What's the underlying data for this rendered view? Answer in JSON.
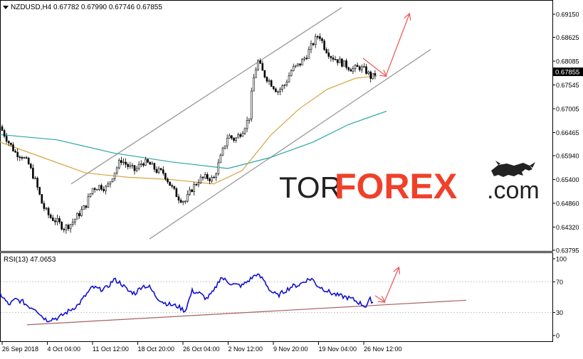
{
  "colors": {
    "background": "#ffffff",
    "axis": "#000000",
    "candle_up": "#ffffff",
    "candle_down": "#000000",
    "ma_fast": "#d9a441",
    "ma_slow": "#2aa5a5",
    "channel": "#9a9a9a",
    "rsi_line": "#1010d0",
    "rsi_trend": "#a86060",
    "arrow": "#f05050",
    "price_tag_bg": "#000000",
    "price_tag_text": "#ffffff",
    "logo_dark": "#222222",
    "logo_red": "#f0402a"
  },
  "logo": {
    "part1": "TOR",
    "part2": "FOREX",
    "part3": ".com",
    "bull_icon": "bull-icon"
  },
  "chart_data": [
    {
      "type": "candlestick",
      "title": "NZDUSD,H4  0.67782  0.67990  0.67746  0.67855",
      "symbol": "NZDUSD",
      "timeframe": "H4",
      "ohlc_readout": {
        "open": 0.67782,
        "high": 0.6799,
        "low": 0.67746,
        "close": 0.67855
      },
      "current_price_label": "0.67855",
      "ylim": [
        0.63795,
        0.6915
      ],
      "y_ticks": [
        "0.69150",
        "0.68625",
        "0.68085",
        "0.67545",
        "0.67005",
        "0.66465",
        "0.65940",
        "0.65400",
        "0.64860",
        "0.64320",
        "0.63795"
      ],
      "x_tick_labels": [
        "26 Sep 2018",
        "4 Oct 04:00",
        "11 Oct 12:00",
        "18 Oct 20:00",
        "26 Oct 04:00",
        "2 Nov 12:00",
        "9 Nov 20:00",
        "19 Nov 04:00",
        "26 Nov 12:00"
      ],
      "close_path": [
        [
          0,
          0.666
        ],
        [
          12,
          0.6625
        ],
        [
          22,
          0.66
        ],
        [
          30,
          0.6595
        ],
        [
          40,
          0.6575
        ],
        [
          50,
          0.6535
        ],
        [
          60,
          0.648
        ],
        [
          70,
          0.6455
        ],
        [
          80,
          0.6445
        ],
        [
          90,
          0.643
        ],
        [
          100,
          0.644
        ],
        [
          110,
          0.646
        ],
        [
          120,
          0.648
        ],
        [
          130,
          0.652
        ],
        [
          140,
          0.6525
        ],
        [
          150,
          0.652
        ],
        [
          160,
          0.6555
        ],
        [
          170,
          0.6585
        ],
        [
          180,
          0.657
        ],
        [
          190,
          0.656
        ],
        [
          200,
          0.658
        ],
        [
          210,
          0.6575
        ],
        [
          220,
          0.656
        ],
        [
          230,
          0.6555
        ],
        [
          240,
          0.6525
        ],
        [
          250,
          0.65
        ],
        [
          260,
          0.649
        ],
        [
          270,
          0.652
        ],
        [
          280,
          0.654
        ],
        [
          290,
          0.6545
        ],
        [
          300,
          0.654
        ],
        [
          310,
          0.659
        ],
        [
          320,
          0.664
        ],
        [
          330,
          0.663
        ],
        [
          340,
          0.665
        ],
        [
          350,
          0.668
        ],
        [
          355,
          0.676
        ],
        [
          362,
          0.681
        ],
        [
          370,
          0.678
        ],
        [
          380,
          0.676
        ],
        [
          390,
          0.674
        ],
        [
          400,
          0.6755
        ],
        [
          410,
          0.679
        ],
        [
          420,
          0.68
        ],
        [
          430,
          0.682
        ],
        [
          440,
          0.685
        ],
        [
          448,
          0.687
        ],
        [
          456,
          0.684
        ],
        [
          465,
          0.682
        ],
        [
          475,
          0.681
        ],
        [
          485,
          0.68
        ],
        [
          495,
          0.679
        ],
        [
          505,
          0.6795
        ],
        [
          515,
          0.6785
        ],
        [
          522,
          0.677
        ],
        [
          530,
          0.6785
        ]
      ],
      "ma_fast_path": [
        [
          0,
          0.6625
        ],
        [
          60,
          0.659
        ],
        [
          120,
          0.6555
        ],
        [
          180,
          0.6545
        ],
        [
          240,
          0.654
        ],
        [
          300,
          0.653
        ],
        [
          340,
          0.656
        ],
        [
          380,
          0.664
        ],
        [
          420,
          0.67
        ],
        [
          460,
          0.6745
        ],
        [
          500,
          0.677
        ],
        [
          530,
          0.6775
        ]
      ],
      "ma_slow_path": [
        [
          0,
          0.6642
        ],
        [
          80,
          0.663
        ],
        [
          160,
          0.66
        ],
        [
          240,
          0.658
        ],
        [
          320,
          0.6565
        ],
        [
          380,
          0.659
        ],
        [
          440,
          0.6625
        ],
        [
          490,
          0.6665
        ],
        [
          543,
          0.6695
        ]
      ],
      "channel_upper": [
        [
          100,
          0.653
        ],
        [
          480,
          0.693
        ]
      ],
      "channel_lower": [
        [
          210,
          0.6405
        ],
        [
          605,
          0.6835
        ]
      ],
      "forecast_arrow": [
        [
          510,
          0.6815
        ],
        [
          542,
          0.6775
        ],
        [
          575,
          0.6915
        ]
      ]
    },
    {
      "type": "line",
      "title": "RSI(13) 47.0653",
      "indicator": "RSI",
      "period": 13,
      "value": 47.0653,
      "ylim": [
        0,
        100
      ],
      "y_ticks": [
        "100",
        "70",
        "30",
        "0"
      ],
      "rsi_path": [
        [
          0,
          55
        ],
        [
          12,
          40
        ],
        [
          22,
          47
        ],
        [
          32,
          44
        ],
        [
          40,
          38
        ],
        [
          50,
          35
        ],
        [
          58,
          26
        ],
        [
          66,
          20
        ],
        [
          74,
          22
        ],
        [
          82,
          23
        ],
        [
          90,
          28
        ],
        [
          100,
          34
        ],
        [
          110,
          40
        ],
        [
          120,
          52
        ],
        [
          130,
          63
        ],
        [
          140,
          60
        ],
        [
          150,
          62
        ],
        [
          160,
          73
        ],
        [
          170,
          68
        ],
        [
          180,
          58
        ],
        [
          190,
          55
        ],
        [
          200,
          65
        ],
        [
          210,
          63
        ],
        [
          220,
          50
        ],
        [
          230,
          43
        ],
        [
          240,
          40
        ],
        [
          250,
          38
        ],
        [
          260,
          32
        ],
        [
          270,
          58
        ],
        [
          280,
          55
        ],
        [
          290,
          48
        ],
        [
          300,
          57
        ],
        [
          310,
          76
        ],
        [
          320,
          70
        ],
        [
          330,
          66
        ],
        [
          340,
          65
        ],
        [
          350,
          72
        ],
        [
          360,
          80
        ],
        [
          370,
          73
        ],
        [
          380,
          58
        ],
        [
          390,
          52
        ],
        [
          400,
          58
        ],
        [
          410,
          64
        ],
        [
          420,
          66
        ],
        [
          430,
          72
        ],
        [
          438,
          74
        ],
        [
          446,
          65
        ],
        [
          456,
          60
        ],
        [
          466,
          55
        ],
        [
          476,
          52
        ],
        [
          486,
          50
        ],
        [
          496,
          47
        ],
        [
          506,
          42
        ],
        [
          514,
          38
        ],
        [
          520,
          47
        ],
        [
          525,
          43
        ]
      ],
      "trend_line": [
        [
          38,
          14
        ],
        [
          655,
          46
        ]
      ],
      "forecast_arrow": [
        [
          527,
          52
        ],
        [
          540,
          44
        ],
        [
          560,
          88
        ]
      ]
    }
  ]
}
